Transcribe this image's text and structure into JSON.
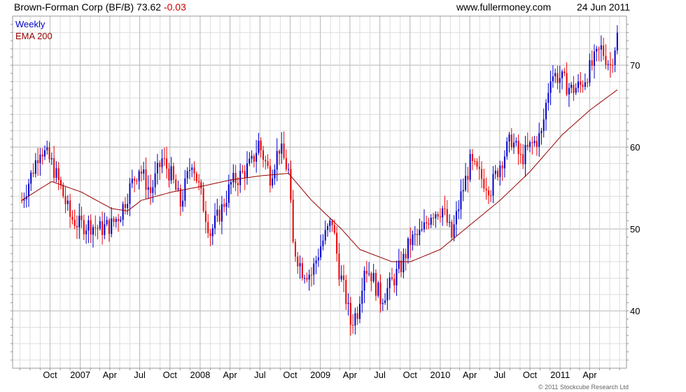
{
  "header": {
    "title": "Brown-Forman Corp (BF/B) 73.62",
    "change": "-0.03",
    "site": "www.fullermoney.com",
    "date": "24 Jun 2011"
  },
  "legend": {
    "weekly": "Weekly",
    "ema": "EMA 200"
  },
  "copyright": "© 2011 Stockcube Research Ltd",
  "colors": {
    "up": "#0000cc",
    "down": "#ee0000",
    "ema": "#990000",
    "grid": "#dddddd"
  },
  "chart_data": {
    "type": "candlestick",
    "title": "Brown-Forman Corp (BF/B) 73.62 -0.03",
    "y_ticks": [
      40,
      50,
      60,
      70
    ],
    "ylim": [
      33,
      76
    ],
    "x_tick_labels": [
      "Oct",
      "2007",
      "Apr",
      "Jul",
      "Oct",
      "2008",
      "Apr",
      "Jul",
      "Oct",
      "2009",
      "Apr",
      "Jul",
      "Oct",
      "2010",
      "Apr",
      "Jul",
      "Oct",
      "2011",
      "Apr"
    ],
    "price_anchors": [
      [
        "2006-07-07",
        53.5
      ],
      [
        "2006-08-04",
        56.5
      ],
      [
        "2006-09-01",
        60.0
      ],
      [
        "2006-10-06",
        58.0
      ],
      [
        "2006-11-03",
        55.0
      ],
      [
        "2006-12-01",
        51.5
      ],
      [
        "2006-12-29",
        50.5
      ],
      [
        "2007-02-02",
        50.5
      ],
      [
        "2007-03-02",
        50.0
      ],
      [
        "2007-04-06",
        50.5
      ],
      [
        "2007-05-04",
        52.0
      ],
      [
        "2007-06-01",
        55.0
      ],
      [
        "2007-06-29",
        57.5
      ],
      [
        "2007-08-03",
        54.5
      ],
      [
        "2007-09-07",
        58.5
      ],
      [
        "2007-10-05",
        56.5
      ],
      [
        "2007-11-02",
        53.0
      ],
      [
        "2007-12-07",
        58.5
      ],
      [
        "2008-01-04",
        54.0
      ],
      [
        "2008-02-01",
        49.5
      ],
      [
        "2008-03-07",
        52.5
      ],
      [
        "2008-04-04",
        55.5
      ],
      [
        "2008-05-02",
        56.5
      ],
      [
        "2008-06-06",
        58.0
      ],
      [
        "2008-06-27",
        60.5
      ],
      [
        "2008-08-01",
        56.5
      ],
      [
        "2008-08-29",
        60.0
      ],
      [
        "2008-09-26",
        57.0
      ],
      [
        "2008-10-10",
        48.0
      ],
      [
        "2008-11-07",
        45.0
      ],
      [
        "2008-12-05",
        44.5
      ],
      [
        "2009-01-02",
        48.0
      ],
      [
        "2009-02-06",
        51.0
      ],
      [
        "2009-02-27",
        45.0
      ],
      [
        "2009-03-20",
        41.5
      ],
      [
        "2009-04-03",
        38.5
      ],
      [
        "2009-04-24",
        40.0
      ],
      [
        "2009-05-15",
        45.5
      ],
      [
        "2009-06-05",
        44.5
      ],
      [
        "2009-07-03",
        41.5
      ],
      [
        "2009-07-31",
        43.0
      ],
      [
        "2009-09-04",
        45.5
      ],
      [
        "2009-10-02",
        48.5
      ],
      [
        "2009-11-06",
        49.5
      ],
      [
        "2009-12-04",
        52.0
      ],
      [
        "2010-01-08",
        52.5
      ],
      [
        "2010-02-05",
        49.0
      ],
      [
        "2010-03-05",
        54.0
      ],
      [
        "2010-04-02",
        58.0
      ],
      [
        "2010-04-30",
        56.5
      ],
      [
        "2010-06-04",
        55.0
      ],
      [
        "2010-07-02",
        58.0
      ],
      [
        "2010-08-06",
        61.0
      ],
      [
        "2010-09-03",
        58.5
      ],
      [
        "2010-10-01",
        60.0
      ],
      [
        "2010-11-05",
        61.5
      ],
      [
        "2010-12-03",
        69.0
      ],
      [
        "2010-12-31",
        68.5
      ],
      [
        "2011-02-04",
        67.0
      ],
      [
        "2011-03-04",
        67.5
      ],
      [
        "2011-04-01",
        69.5
      ],
      [
        "2011-05-06",
        72.0
      ],
      [
        "2011-06-03",
        70.0
      ],
      [
        "2011-06-24",
        73.6
      ]
    ],
    "ema_anchors": [
      [
        "2006-07-07",
        53.5
      ],
      [
        "2006-10-06",
        55.8
      ],
      [
        "2007-01-05",
        54.5
      ],
      [
        "2007-04-06",
        52.5
      ],
      [
        "2007-05-25",
        52.2
      ],
      [
        "2007-07-06",
        53.5
      ],
      [
        "2007-10-05",
        54.5
      ],
      [
        "2008-01-04",
        55.2
      ],
      [
        "2008-04-04",
        56.0
      ],
      [
        "2008-07-04",
        56.5
      ],
      [
        "2008-09-26",
        56.8
      ],
      [
        "2008-12-05",
        53.5
      ],
      [
        "2009-03-06",
        50.0
      ],
      [
        "2009-05-01",
        47.5
      ],
      [
        "2009-08-07",
        46.0
      ],
      [
        "2009-10-02",
        46.0
      ],
      [
        "2010-01-01",
        47.5
      ],
      [
        "2010-04-02",
        50.5
      ],
      [
        "2010-07-02",
        53.5
      ],
      [
        "2010-10-01",
        57.0
      ],
      [
        "2011-01-07",
        61.5
      ],
      [
        "2011-04-01",
        64.5
      ],
      [
        "2011-06-24",
        67.0
      ]
    ]
  }
}
